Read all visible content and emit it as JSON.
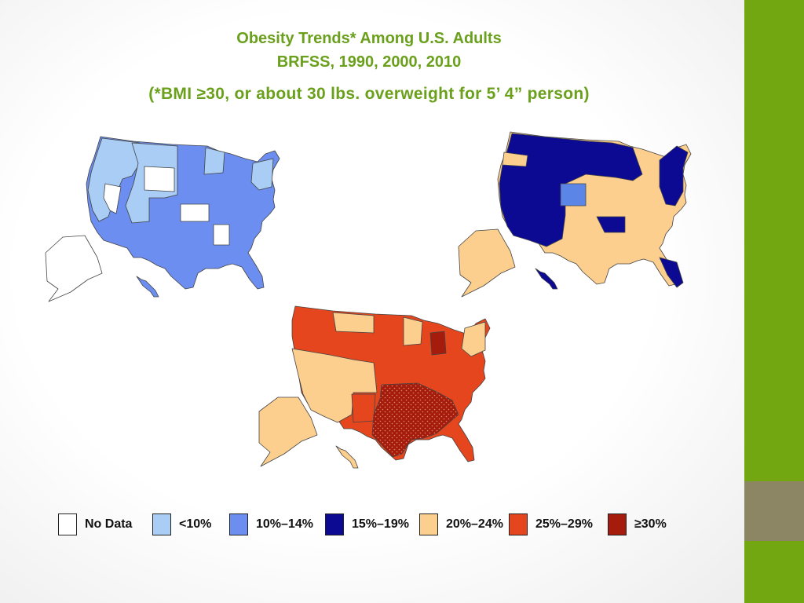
{
  "title_line1": "Obesity Trends* Among U.S. Adults",
  "title_line2": "BRFSS, 1990, 2000, 2010",
  "title_line3": "(*BMI ≥30, or about 30 lbs. overweight for 5’ 4”  person)",
  "maps": [
    {
      "year_shown": "1990",
      "dominant_category": "10%–14%",
      "colors": {
        "primary": "#6b8ef0",
        "secondary": "#a9cdf5",
        "nodata": "#ffffff"
      }
    },
    {
      "year_shown": "2000",
      "dominant_category": "20%–24%",
      "colors": {
        "primary": "#fdcf8f",
        "secondary": "#0c0a93",
        "tertiary": "#5b86e8"
      }
    },
    {
      "year_shown": "2010",
      "dominant_category": "25%–29%",
      "colors": {
        "primary": "#e6461d",
        "secondary": "#a51c0d",
        "tertiary": "#fdcf8f"
      }
    }
  ],
  "legend": [
    {
      "label": "No Data",
      "color": "#ffffff"
    },
    {
      "label": "<10%",
      "color": "#a9cdf5"
    },
    {
      "label": "10%–14%",
      "color": "#6b8ef0"
    },
    {
      "label": "15%–19%",
      "color": "#0c0a93"
    },
    {
      "label": "20%–24%",
      "color": "#fdcf8f"
    },
    {
      "label": "25%–29%",
      "color": "#e6461d"
    },
    {
      "label": "≥30%",
      "color": "#a51c0d"
    }
  ]
}
